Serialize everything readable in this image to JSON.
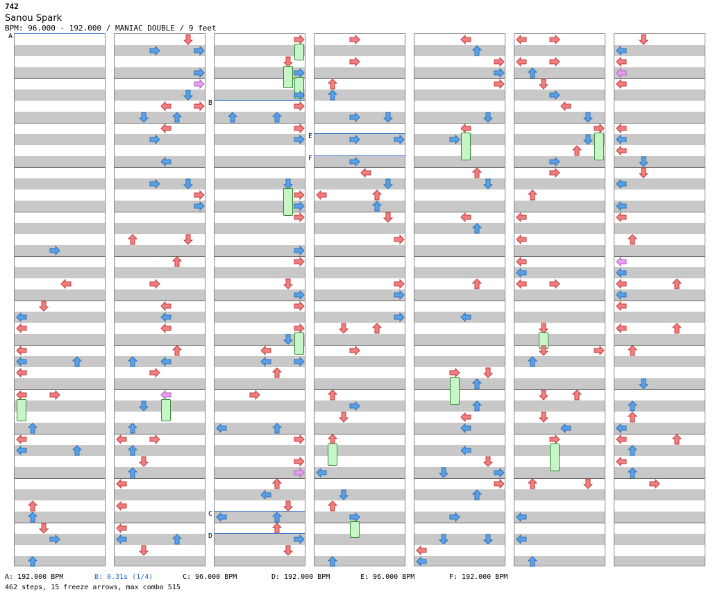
{
  "chart_id": "742",
  "song_title": "Sanou Spark",
  "meta_line": "BPM: 96.000 - 192.000 / MANIAC DOUBLE / 9 feet",
  "legend": [
    {
      "label": "A: 192.000 BPM",
      "color": "#000000"
    },
    {
      "label": "B: 0.31s (1/4)",
      "color": "#2a6bcc"
    },
    {
      "label": "C: 96.000 BPM",
      "color": "#000000"
    },
    {
      "label": "D: 192.000 BPM",
      "color": "#000000"
    },
    {
      "label": "E: 96.000 BPM",
      "color": "#000000"
    },
    {
      "label": "F: 192.000 BPM",
      "color": "#000000"
    }
  ],
  "summary": "462 steps, 15 freeze arrows, max combo 515",
  "markers": [
    {
      "label": "A",
      "col": 0
    },
    {
      "label": "B",
      "col": 2
    },
    {
      "label": "C",
      "col": 2
    },
    {
      "label": "D",
      "col": 2
    },
    {
      "label": "E",
      "col": 3
    },
    {
      "label": "F",
      "col": 3
    }
  ],
  "colors": {
    "red_arrow": "#f08080",
    "blue_arrow": "#5aa0e6",
    "pink_arrow": "#e8a0f0",
    "freeze": "#c8f5c8"
  },
  "icons": {
    "left": "left-arrow-icon",
    "down": "down-arrow-icon",
    "up": "up-arrow-icon",
    "right": "right-arrow-icon"
  }
}
